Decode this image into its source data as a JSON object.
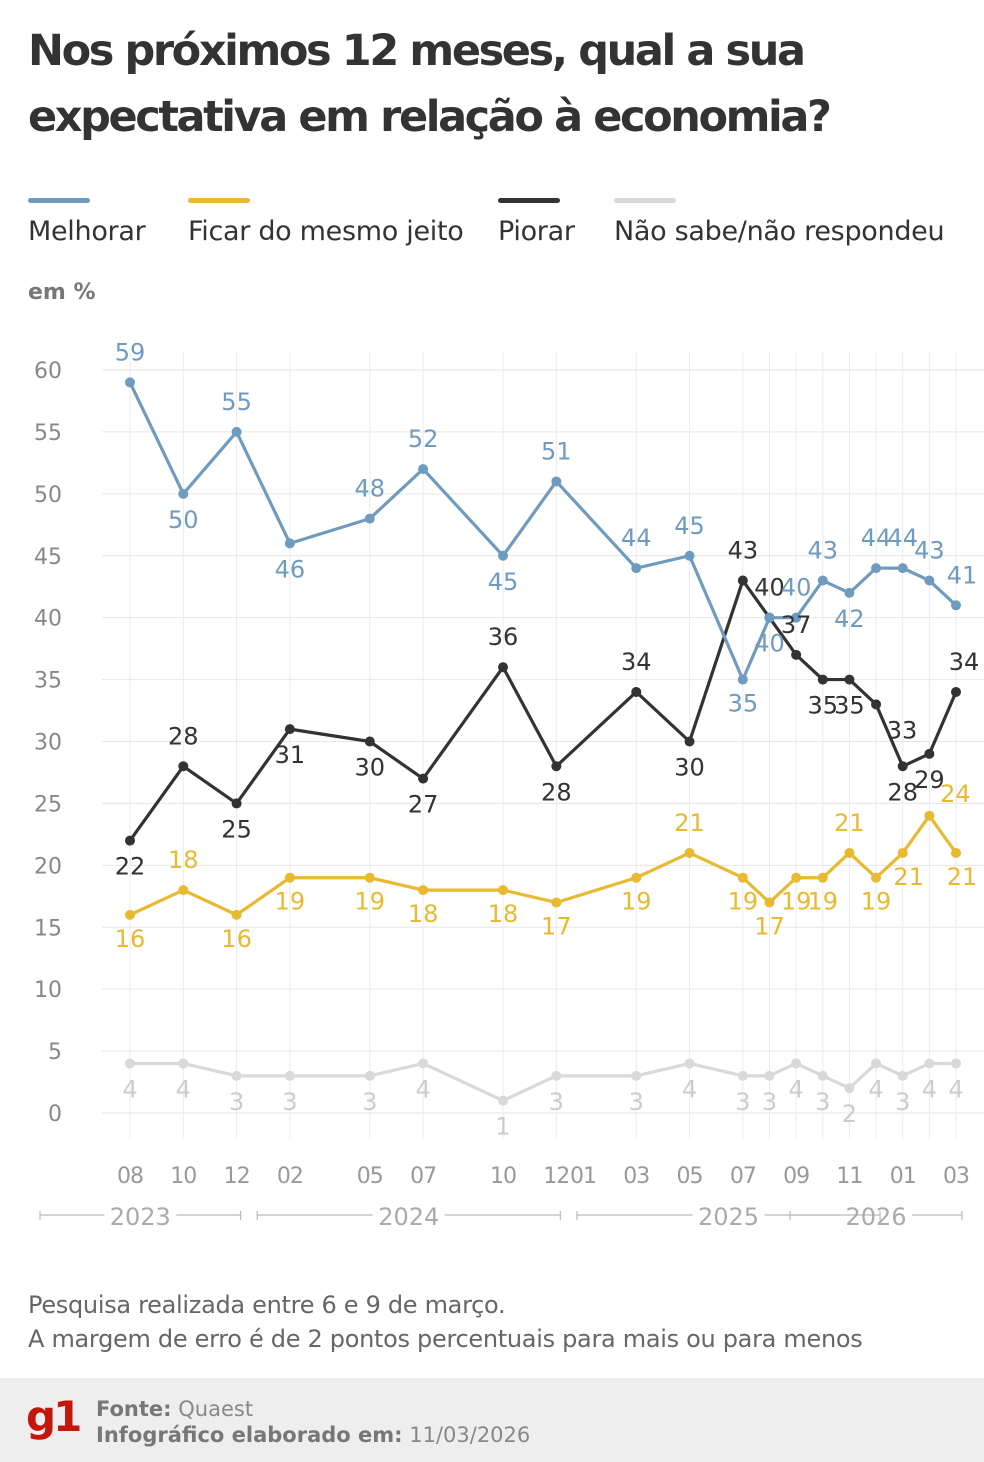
{
  "title": "Nos próximos 12 meses, qual a sua expectativa em relação à economia?",
  "unit": "em %",
  "legend": [
    {
      "label": "Melhorar",
      "color": "#6f9bbf"
    },
    {
      "label": "Ficar do mesmo jeito",
      "color": "#e8b931"
    },
    {
      "label": "Piorar",
      "color": "#333333"
    },
    {
      "label": "Não sabe/não respondeu",
      "color": "#d9d9d9"
    }
  ],
  "chart_data": {
    "type": "line",
    "title": "Nos próximos 12 meses, qual a sua expectativa em relação à economia?",
    "ylabel": "em %",
    "ylim": [
      0,
      60
    ],
    "yticks": [
      "60",
      "55",
      "50",
      "45",
      "40",
      "35",
      "30",
      "25",
      "20",
      "15",
      "10",
      "5",
      "0"
    ],
    "x": [
      "2023-08",
      "2023-10",
      "2023-12",
      "2024-02",
      "2024-05",
      "2024-07",
      "2024-10",
      "2024-12",
      "2025-03",
      "2025-05",
      "2025-07",
      "2025-08",
      "2025-09",
      "2025-10",
      "2025-11",
      "2025-12",
      "2026-01",
      "2026-02",
      "2026-03"
    ],
    "xticks": [
      {
        "label": "08",
        "x": "2023-08"
      },
      {
        "label": "10",
        "x": "2023-10"
      },
      {
        "label": "12",
        "x": "2023-12"
      },
      {
        "label": "02",
        "x": "2024-02"
      },
      {
        "label": "05",
        "x": "2024-05"
      },
      {
        "label": "07",
        "x": "2024-07"
      },
      {
        "label": "10",
        "x": "2024-10"
      },
      {
        "label": "12",
        "x": "2024-12"
      },
      {
        "label": "01",
        "x": "2025-01"
      },
      {
        "label": "03",
        "x": "2025-03"
      },
      {
        "label": "05",
        "x": "2025-05"
      },
      {
        "label": "07",
        "x": "2025-07"
      },
      {
        "label": "09",
        "x": "2025-09"
      },
      {
        "label": "11",
        "x": "2025-11"
      },
      {
        "label": "01",
        "x": "2026-01"
      },
      {
        "label": "03",
        "x": "2026-03"
      }
    ],
    "years": [
      {
        "label": "2023",
        "start": "2023-08",
        "end": "2023-12"
      },
      {
        "label": "2024",
        "start": "2024-01",
        "end": "2024-12"
      },
      {
        "label": "2025",
        "start": "2025-01",
        "end": "2025-12"
      },
      {
        "label": "2026",
        "start": "2026-01",
        "end": "2026-03"
      }
    ],
    "series": [
      {
        "name": "Melhorar",
        "color": "#6f9bbf",
        "values": [
          59,
          50,
          55,
          46,
          48,
          52,
          45,
          51,
          44,
          45,
          35,
          40,
          40,
          43,
          42,
          44,
          44,
          43,
          41
        ]
      },
      {
        "name": "Ficar do mesmo jeito",
        "color": "#e8b931",
        "values": [
          16,
          18,
          16,
          19,
          19,
          18,
          18,
          17,
          19,
          21,
          19,
          17,
          19,
          19,
          21,
          19,
          21,
          24,
          21
        ]
      },
      {
        "name": "Piorar",
        "color": "#333333",
        "values": [
          22,
          28,
          25,
          31,
          30,
          27,
          36,
          28,
          34,
          30,
          43,
          40,
          37,
          35,
          35,
          33,
          28,
          29,
          34
        ]
      },
      {
        "name": "Não sabe/não respondeu",
        "color": "#d9d9d9",
        "values": [
          4,
          4,
          3,
          3,
          3,
          4,
          1,
          3,
          3,
          4,
          3,
          3,
          4,
          3,
          2,
          4,
          3,
          4,
          4
        ]
      }
    ]
  },
  "notes": [
    "Pesquisa realizada entre 6 e 9 de março.",
    "A margem de erro é de 2 pontos percentuais para mais ou para menos"
  ],
  "footer": {
    "logo": "g1",
    "source_label": "Fonte:",
    "source_value": "Quaest",
    "made_label": "Infográfico elaborado em:",
    "made_value": "11/03/2026"
  }
}
